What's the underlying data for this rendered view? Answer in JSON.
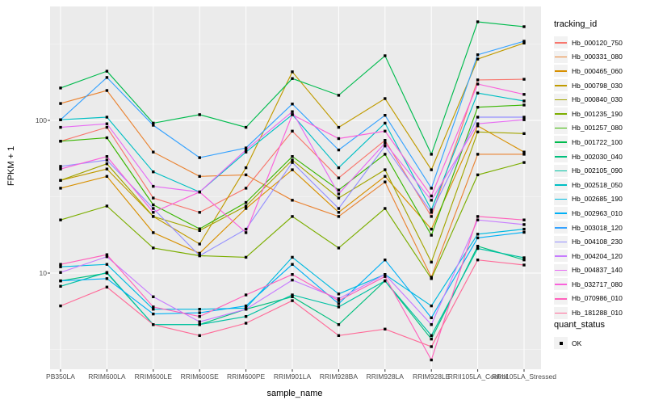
{
  "figure": {
    "y_axis": {
      "title": "FPKM + 1",
      "tick_labels": [
        "100",
        "10"
      ]
    },
    "x_axis": {
      "title": "sample_name"
    },
    "legend": {
      "title": "tracking_id"
    },
    "quant_legend": {
      "title": "quant_status",
      "items": [
        {
          "label": "OK"
        }
      ]
    }
  },
  "colors": {
    "panel_background": "#EBEBEB",
    "grid_major": "#FFFFFF",
    "grid_minor": "#FFFFFF",
    "tick_text": "#4D4D4D",
    "point": "#000000",
    "legend_key_background": "#F2F2F2"
  },
  "chart_data": {
    "type": "line",
    "title": "",
    "xlabel": "sample_name",
    "ylabel": "FPKM + 1",
    "y_scale": "log10",
    "y_ticks": [
      10,
      100
    ],
    "ylim": [
      2.4,
      560
    ],
    "grid": true,
    "legend_position": "right",
    "point_shape": "filled-black-square",
    "quant_status": "OK",
    "categories": [
      "PB350LA",
      "RRIM600LA",
      "RRIM600LE",
      "RRIM600SE",
      "RRIM600PE",
      "RRIM901LA",
      "RRIM928BA",
      "RRIM928LA",
      "RRIM928LE",
      "RRII105LA_Control",
      "RRII105LA_Stressed"
    ],
    "series": [
      {
        "name": "Hb_000120_750",
        "color": "#F8766D",
        "values": [
          73,
          90,
          31,
          25,
          36,
          85,
          42,
          74,
          23.5,
          184,
          186
        ]
      },
      {
        "name": "Hb_000331_080",
        "color": "#EA8331",
        "values": [
          129,
          157,
          62,
          43,
          44,
          30,
          23.5,
          39.5,
          9.4,
          60,
          60
        ]
      },
      {
        "name": "Hb_000465_060",
        "color": "#D89000",
        "values": [
          36,
          43,
          18.4,
          13.5,
          26.5,
          47.5,
          25,
          43,
          19.4,
          92,
          62
        ]
      },
      {
        "name": "Hb_000798_030",
        "color": "#C09B00",
        "values": [
          40.5,
          48,
          23.5,
          15.5,
          49,
          208,
          90,
          139,
          47.5,
          252,
          321
        ]
      },
      {
        "name": "Hb_000840_030",
        "color": "#A3A500",
        "values": [
          40.5,
          52,
          23.5,
          19,
          27.5,
          55,
          31,
          47.5,
          11.8,
          84,
          82
        ]
      },
      {
        "name": "Hb_001235_190",
        "color": "#7CAE00",
        "values": [
          22.3,
          27.5,
          14.6,
          13,
          12.7,
          23.5,
          14.6,
          26.5,
          9.2,
          44,
          53
        ]
      },
      {
        "name": "Hb_001257_080",
        "color": "#39B600",
        "values": [
          73,
          77,
          28,
          19.5,
          29,
          58,
          35,
          60,
          17.7,
          122,
          126
        ]
      },
      {
        "name": "Hb_001722_100",
        "color": "#00BB4E",
        "values": [
          163,
          210,
          96,
          109,
          90,
          188,
          146,
          265,
          60,
          442,
          411
        ]
      },
      {
        "name": "Hb_002030_040",
        "color": "#00BF7D",
        "values": [
          8.9,
          10,
          4.6,
          4.6,
          5.8,
          7,
          4.6,
          8.9,
          3.7,
          15,
          12.2
        ]
      },
      {
        "name": "Hb_002105_090",
        "color": "#00C1A3",
        "values": [
          8.2,
          10.1,
          4.6,
          4.6,
          5.2,
          7.2,
          6,
          8.9,
          3.9,
          14.5,
          12.6
        ]
      },
      {
        "name": "Hb_002518_050",
        "color": "#00BFC4",
        "values": [
          101,
          105,
          46,
          34,
          62,
          109,
          49,
          96,
          26,
          151,
          134
        ]
      },
      {
        "name": "Hb_002685_190",
        "color": "#00BAE0",
        "values": [
          11,
          11.4,
          5.8,
          5.8,
          5.9,
          12.7,
          7.3,
          9.8,
          6.1,
          18,
          19.4
        ]
      },
      {
        "name": "Hb_002963_010",
        "color": "#00B0F6",
        "values": [
          8.9,
          9.2,
          5.4,
          5.5,
          6.1,
          11.4,
          6.3,
          12.2,
          5.1,
          17,
          18.5
        ]
      },
      {
        "name": "Hb_003018_120",
        "color": "#35A2FF",
        "values": [
          101,
          191,
          93,
          57,
          66,
          128,
          64,
          108,
          36,
          269,
          330
        ]
      },
      {
        "name": "Hb_004108_230",
        "color": "#9590FF",
        "values": [
          50,
          55,
          26.5,
          13,
          19.4,
          53,
          26.5,
          68,
          25,
          105,
          105
        ]
      },
      {
        "name": "Hb_004204_120",
        "color": "#C77CFF",
        "values": [
          10.1,
          12.8,
          7,
          4.8,
          5.8,
          9,
          6.8,
          9.8,
          4.6,
          22.3,
          20.8
        ]
      },
      {
        "name": "Hb_004837_140",
        "color": "#E76BF3",
        "values": [
          90,
          95,
          37,
          34,
          64,
          114,
          33,
          71,
          30,
          95,
          101
        ]
      },
      {
        "name": "Hb_032717_080",
        "color": "#FA62DB",
        "values": [
          48,
          58,
          25,
          34,
          18.4,
          109,
          76,
          85,
          32,
          173,
          148
        ]
      },
      {
        "name": "Hb_070986_010",
        "color": "#FF62BC",
        "values": [
          11.4,
          13.2,
          6,
          5.2,
          7.2,
          9.8,
          6.6,
          9.5,
          2.7,
          23.5,
          22.3
        ]
      },
      {
        "name": "Hb_181288_010",
        "color": "#FF6A98",
        "values": [
          6.1,
          8.1,
          4.6,
          3.9,
          4.7,
          6.6,
          3.9,
          4.3,
          3.3,
          12.2,
          11.3
        ]
      }
    ]
  }
}
